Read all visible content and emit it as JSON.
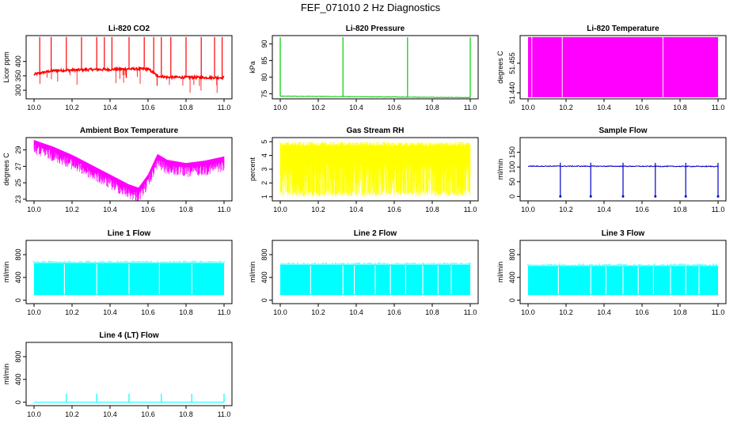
{
  "figure": {
    "title": "FEF_071010  2 Hz Diagnostics"
  },
  "chart_data": [
    {
      "id": "co2",
      "type": "line",
      "title": "Li-820 CO2",
      "xlabel": "",
      "ylabel": "Licor ppm",
      "color": "#ff0000",
      "xlim": [
        10.0,
        11.0
      ],
      "ylim": [
        270,
        490
      ],
      "xticks": [
        "10.0",
        "10.2",
        "10.4",
        "10.6",
        "10.8",
        "11.0"
      ],
      "yticks": [
        300,
        350,
        400
      ],
      "series": [
        {
          "values_desc": "",
          "x": [
            10.0,
            10.05,
            10.1,
            10.2,
            10.3,
            10.4,
            10.5,
            10.6,
            10.65,
            10.7,
            10.8,
            10.9,
            11.0
          ],
          "y": [
            355,
            362,
            368,
            370,
            372,
            372,
            374,
            374,
            350,
            345,
            345,
            344,
            344
          ]
        }
      ],
      "spikes": [
        10.03,
        10.09,
        10.17,
        10.25,
        10.33,
        10.37,
        10.41,
        10.5,
        10.58,
        10.63,
        10.67,
        10.72,
        10.8,
        10.88,
        10.95,
        10.99
      ]
    },
    {
      "id": "pressure",
      "type": "line",
      "title": "Li-820 Pressure",
      "xlabel": "",
      "ylabel": "kPa",
      "color": "#00cc00",
      "xlim": [
        10.0,
        11.0
      ],
      "ylim": [
        73.5,
        92.5
      ],
      "xticks": [
        "10.0",
        "10.2",
        "10.4",
        "10.6",
        "10.8",
        "11.0"
      ],
      "yticks": [
        75,
        80,
        85,
        90
      ],
      "series": [
        {
          "x": [
            10.0,
            11.0
          ],
          "y": [
            74.3,
            73.9
          ]
        }
      ],
      "spikes": [
        10.0,
        10.33,
        10.67,
        11.0
      ]
    },
    {
      "id": "temperature",
      "type": "area",
      "title": "Li-820 Temperature",
      "xlabel": "",
      "ylabel": "degrees C",
      "color": "#ff00ff",
      "xlim": [
        10.0,
        11.0
      ],
      "ylim": [
        51.437,
        51.469
      ],
      "xticks": [
        "10.0",
        "10.2",
        "10.4",
        "10.6",
        "10.8",
        "11.0"
      ],
      "yticks": [
        "51.440",
        "51.455"
      ],
      "gaps": [
        10.02,
        10.18,
        10.71
      ]
    },
    {
      "id": "ambient",
      "type": "line",
      "title": "Ambient Box Temperature",
      "xlabel": "",
      "ylabel": "degrees C",
      "color": "#ff00ff",
      "xlim": [
        10.0,
        11.0
      ],
      "ylim": [
        22.8,
        30.5
      ],
      "xticks": [
        "10.0",
        "10.2",
        "10.4",
        "10.6",
        "10.8",
        "11.0"
      ],
      "yticks": [
        23,
        25,
        27,
        29
      ],
      "series": [
        {
          "x": [
            10.0,
            10.1,
            10.2,
            10.3,
            10.4,
            10.5,
            10.55,
            10.6,
            10.65,
            10.7,
            10.8,
            10.9,
            11.0
          ],
          "y": [
            30.0,
            29.2,
            28.2,
            27.0,
            25.8,
            24.6,
            24.2,
            25.8,
            28.3,
            27.6,
            27.2,
            27.5,
            28.0
          ]
        }
      ]
    },
    {
      "id": "rh",
      "type": "area",
      "title": "Gas Stream RH",
      "xlabel": "",
      "ylabel": "percent",
      "color": "#ffff00",
      "xlim": [
        10.0,
        11.0
      ],
      "ylim": [
        0.7,
        5.3
      ],
      "xticks": [
        "10.0",
        "10.2",
        "10.4",
        "10.6",
        "10.8",
        "11.0"
      ],
      "yticks": [
        1,
        2,
        3,
        4,
        5
      ],
      "upper": 5.0,
      "lower": 1.0
    },
    {
      "id": "sample",
      "type": "line",
      "title": "Sample Flow",
      "xlabel": "",
      "ylabel": "ml/min",
      "color": "#0000cc",
      "xlim": [
        10.0,
        11.0
      ],
      "ylim": [
        -15,
        200
      ],
      "xticks": [
        "10.0",
        "10.2",
        "10.4",
        "10.6",
        "10.8",
        "11.0"
      ],
      "yticks": [
        0,
        50,
        100,
        150
      ],
      "series": [
        {
          "x": [
            10.0,
            11.0
          ],
          "y": [
            103,
            102
          ]
        }
      ],
      "dips": [
        10.17,
        10.33,
        10.5,
        10.67,
        10.83,
        11.0
      ]
    },
    {
      "id": "line1",
      "type": "area",
      "title": "Line 1 Flow",
      "xlabel": "",
      "ylabel": "ml/min",
      "color": "#00ffff",
      "xlim": [
        10.0,
        11.0
      ],
      "ylim": [
        -60,
        1050
      ],
      "xticks": [
        "10.0",
        "10.2",
        "10.4",
        "10.6",
        "10.8",
        "11.0"
      ],
      "yticks": [
        0,
        400,
        800
      ],
      "upper": 650,
      "lower": 90,
      "gaps": [
        10.16,
        10.33,
        10.5,
        10.66,
        10.83
      ]
    },
    {
      "id": "line2",
      "type": "area",
      "title": "Line 2 Flow",
      "xlabel": "",
      "ylabel": "ml/min",
      "color": "#00ffff",
      "xlim": [
        10.0,
        11.0
      ],
      "ylim": [
        -60,
        1050
      ],
      "xticks": [
        "10.0",
        "10.2",
        "10.4",
        "10.6",
        "10.8",
        "11.0"
      ],
      "yticks": [
        0,
        400,
        800
      ],
      "upper": 620,
      "lower": 90,
      "gaps": [
        10.16,
        10.33,
        10.39,
        10.5,
        10.58,
        10.66,
        10.75,
        10.83,
        10.9
      ]
    },
    {
      "id": "line3",
      "type": "area",
      "title": "Line 3 Flow",
      "xlabel": "",
      "ylabel": "ml/min",
      "color": "#00ffff",
      "xlim": [
        10.0,
        11.0
      ],
      "ylim": [
        -60,
        1050
      ],
      "xticks": [
        "10.0",
        "10.2",
        "10.4",
        "10.6",
        "10.8",
        "11.0"
      ],
      "yticks": [
        0,
        400,
        800
      ],
      "upper": 600,
      "lower": 90,
      "gaps": [
        10.16,
        10.33,
        10.41,
        10.5,
        10.58,
        10.66,
        10.75,
        10.83,
        10.9
      ]
    },
    {
      "id": "line4",
      "type": "line",
      "title": "Line 4 (LT) Flow",
      "xlabel": "",
      "ylabel": "ml/min",
      "color": "#00ffff",
      "xlim": [
        10.0,
        11.0
      ],
      "ylim": [
        -60,
        1050
      ],
      "xticks": [
        "10.0",
        "10.2",
        "10.4",
        "10.6",
        "10.8",
        "11.0"
      ],
      "yticks": [
        0,
        400,
        800
      ],
      "series": [
        {
          "x": [
            10.0,
            11.0
          ],
          "y": [
            0,
            0
          ]
        }
      ],
      "spikes": [
        10.17,
        10.33,
        10.5,
        10.67,
        10.83,
        11.0
      ],
      "spike_height": 150
    }
  ]
}
